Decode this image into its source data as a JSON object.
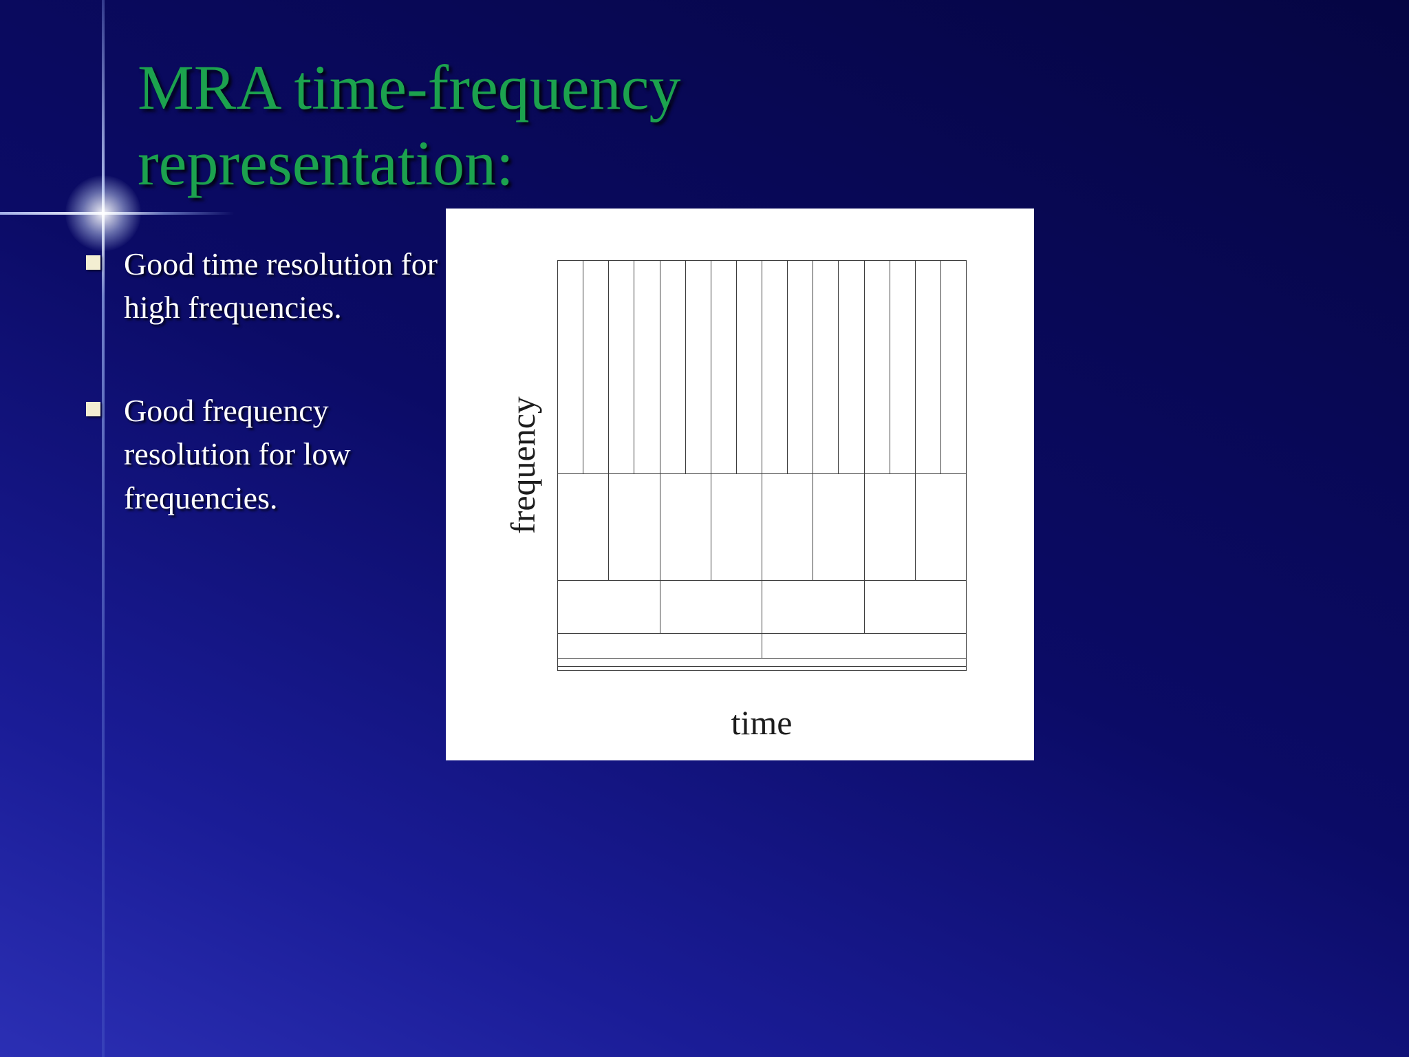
{
  "slide": {
    "title": {
      "line1": "MRA time-frequency",
      "line2": "representation:"
    },
    "bullets": [
      {
        "text": "Good time resolution for high frequencies."
      },
      {
        "text": "Good frequency resolution for low frequencies."
      }
    ]
  },
  "diagram": {
    "xlabel": "time",
    "ylabel": "frequency",
    "rows": [
      {
        "cols": 16,
        "height_pct": 52
      },
      {
        "cols": 8,
        "height_pct": 26
      },
      {
        "cols": 4,
        "height_pct": 13
      },
      {
        "cols": 2,
        "height_pct": 6
      },
      {
        "cols": 1,
        "height_pct": 2
      },
      {
        "cols": 1,
        "height_pct": 1
      }
    ]
  },
  "colors": {
    "title_green": "#1ca24e",
    "background_top": "#050543",
    "background_bottom": "#2b2fb4",
    "bullet_marker": "#f3eed2",
    "panel_background": "#ffffff",
    "grid_line": "#3c3c3c"
  }
}
